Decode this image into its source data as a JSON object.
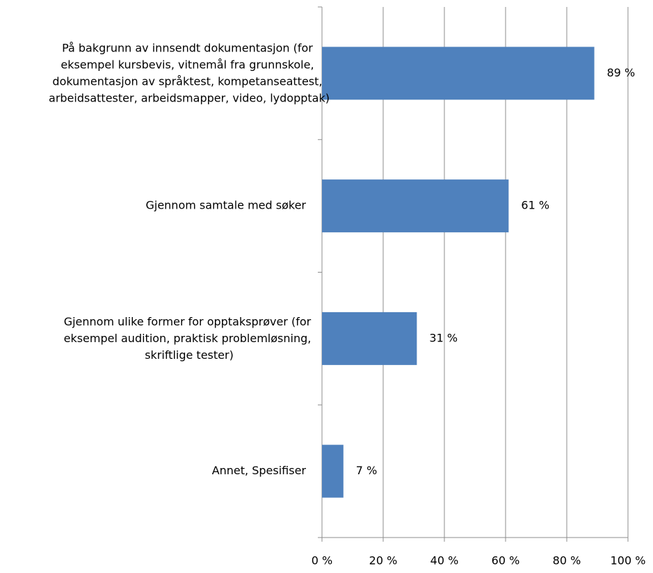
{
  "chart_data": {
    "type": "barh",
    "categories": [
      "På bakgrunn av innsendt dokumentasjon (for eksempel kursbevis, vitnemål fra grunnskole, dokumentasjon av språktest, kompetanseattest, arbeidsattester, arbeidsmapper, video, lydopptak)",
      "Gjennom samtale  med søker",
      "Gjennom ulike former for opptaksprøver (for eksempel audition, praktisk problemløsning, skriftlige tester)",
      "Annet, Spesifiser"
    ],
    "values": [
      89,
      61,
      31,
      7
    ],
    "value_labels": [
      "89 %",
      "61 %",
      "31 %",
      "7 %"
    ],
    "color": "#4f81bd",
    "xlim": [
      0,
      100
    ],
    "xticks": [
      {
        "value": 0,
        "label": "0 %"
      },
      {
        "value": 20,
        "label": "20 %"
      },
      {
        "value": 40,
        "label": "40 %"
      },
      {
        "value": 60,
        "label": "60 %"
      },
      {
        "value": 80,
        "label": "80 %"
      },
      {
        "value": 100,
        "label": "100 %"
      }
    ],
    "grid": true
  }
}
